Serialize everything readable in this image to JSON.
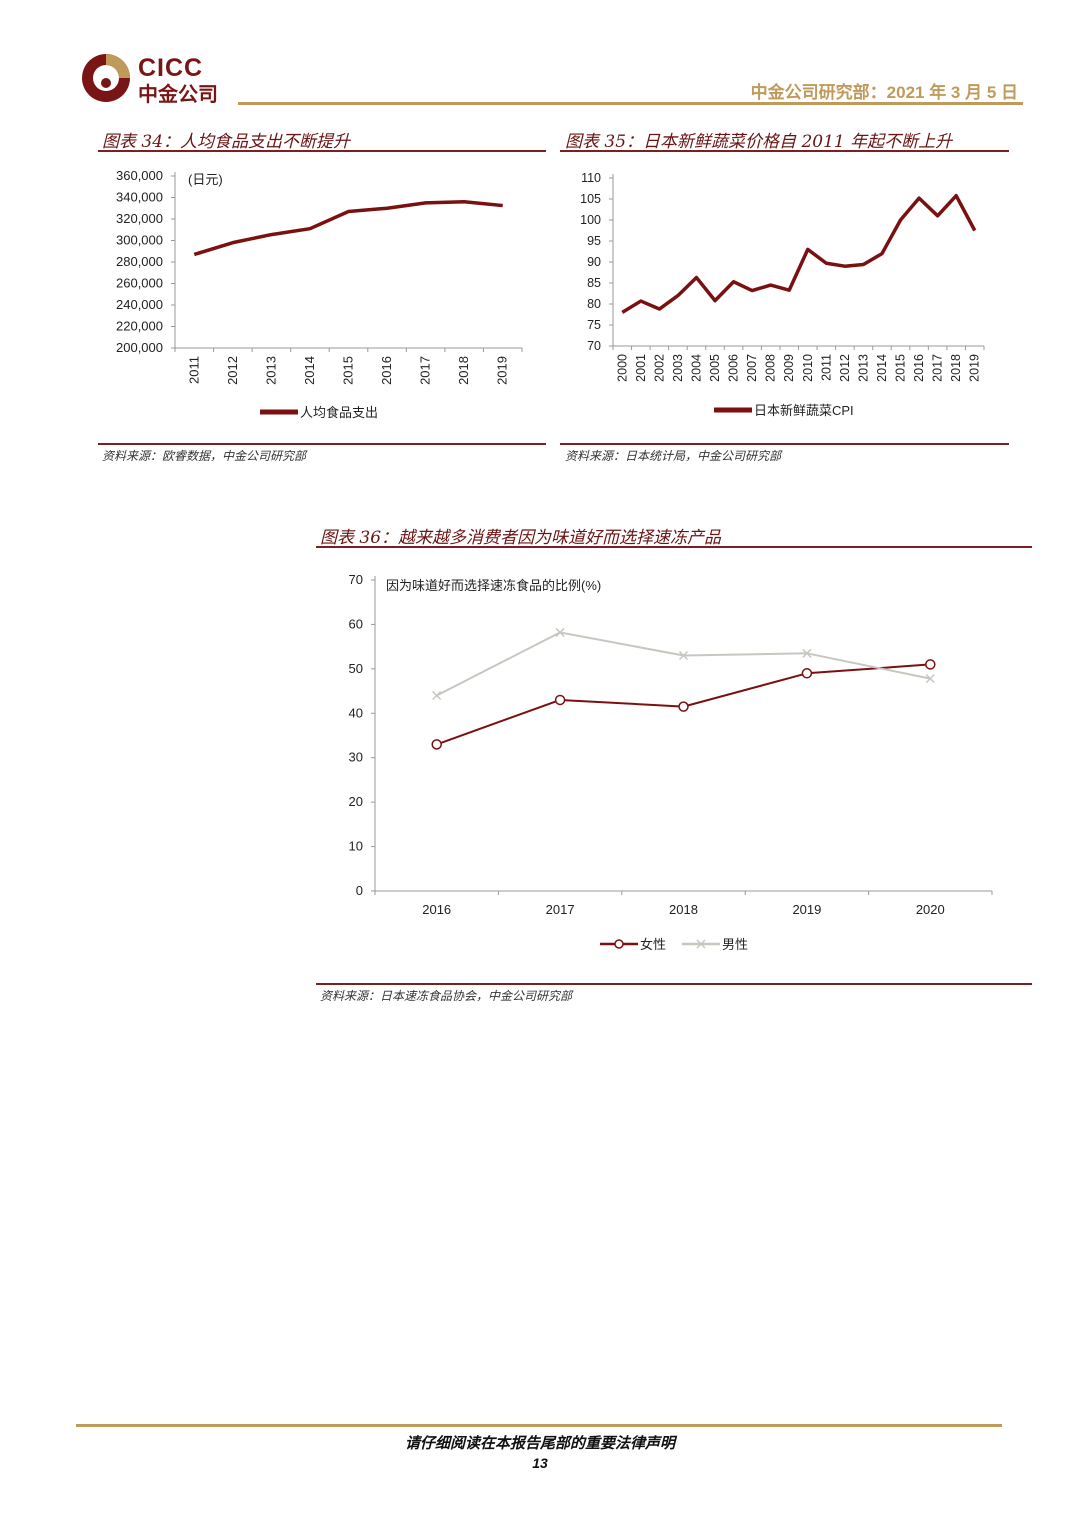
{
  "header": {
    "logo_en": "CICC",
    "logo_cn": "中金公司",
    "right": "中金公司研究部：2021 年 3 月 5 日"
  },
  "fig34": {
    "title": "图表 34：人均食品支出不断提升",
    "source": "资料来源：欧睿数据，中金公司研究部",
    "chart_data": {
      "type": "line",
      "unit_label": "(日元)",
      "categories": [
        "2011",
        "2012",
        "2013",
        "2014",
        "2015",
        "2016",
        "2017",
        "2018",
        "2019"
      ],
      "series": [
        {
          "name": "人均食品支出",
          "values": [
            287000,
            298000,
            305500,
            311000,
            327000,
            330000,
            335000,
            336000,
            332500
          ]
        }
      ],
      "yticks": [
        "200,000",
        "220,000",
        "240,000",
        "260,000",
        "280,000",
        "300,000",
        "320,000",
        "340,000",
        "360,000"
      ],
      "ylim": [
        200000,
        360000
      ],
      "color": "#7a1010"
    }
  },
  "fig35": {
    "title": "图表 35：日本新鲜蔬菜价格自 2011 年起不断上升",
    "source": "资料来源：日本统计局，中金公司研究部",
    "chart_data": {
      "type": "line",
      "categories": [
        "2000",
        "2001",
        "2002",
        "2003",
        "2004",
        "2005",
        "2006",
        "2007",
        "2008",
        "2009",
        "2010",
        "2011",
        "2012",
        "2013",
        "2014",
        "2015",
        "2016",
        "2017",
        "2018",
        "2019"
      ],
      "series": [
        {
          "name": "日本新鲜蔬菜CPI",
          "values": [
            78,
            80.7,
            78.8,
            82,
            86.3,
            80.8,
            85.3,
            83.2,
            84.5,
            83.3,
            93,
            89.7,
            89,
            89.4,
            92,
            100,
            105.2,
            101,
            105.8,
            97.5
          ]
        }
      ],
      "yticks": [
        "70",
        "75",
        "80",
        "85",
        "90",
        "95",
        "100",
        "105",
        "110"
      ],
      "ylim": [
        70,
        110
      ],
      "color": "#7a1010"
    }
  },
  "fig36": {
    "title": "图表 36：越来越多消费者因为味道好而选择速冻产品",
    "source": "资料来源：日本速冻食品协会，中金公司研究部",
    "chart_data": {
      "type": "line",
      "ylabel": "因为味道好而选择速冻食品的比例(%)",
      "categories": [
        "2016",
        "2017",
        "2018",
        "2019",
        "2020"
      ],
      "series": [
        {
          "name": "女性",
          "values": [
            33,
            43,
            41.5,
            49,
            51
          ],
          "color": "#7a1010"
        },
        {
          "name": "男性",
          "values": [
            44,
            58.2,
            53,
            53.5,
            47.8
          ],
          "color": "#c9c6c0"
        }
      ],
      "yticks": [
        "0",
        "10",
        "20",
        "30",
        "40",
        "50",
        "60",
        "70"
      ],
      "ylim": [
        0,
        70
      ]
    }
  },
  "footer": {
    "notice": "请仔细阅读在本报告尾部的重要法律声明",
    "page": "13"
  }
}
